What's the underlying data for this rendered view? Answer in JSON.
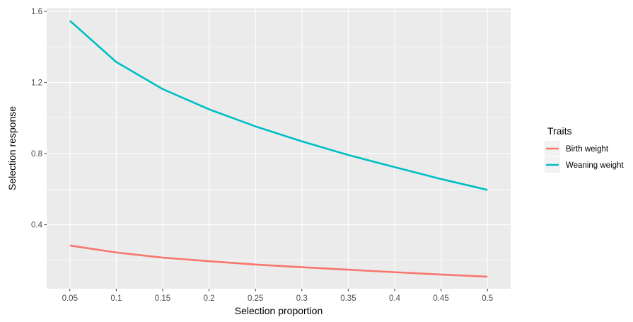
{
  "chart_data": {
    "type": "line",
    "title": "",
    "xlabel": "Selection proportion",
    "ylabel": "Selection response",
    "xlim": [
      0.025,
      0.525
    ],
    "ylim": [
      0.04,
      1.62
    ],
    "x_ticks": [
      0.05,
      0.1,
      0.15,
      0.2,
      0.25,
      0.3,
      0.35,
      0.4,
      0.45,
      0.5
    ],
    "x_tick_labels": [
      "0.05",
      "0.1",
      "0.15",
      "0.2",
      "0.25",
      "0.3",
      "0.35",
      "0.4",
      "0.45",
      "0.5"
    ],
    "y_ticks": [
      0.4,
      0.8,
      1.2,
      1.6
    ],
    "y_tick_labels": [
      "0.4",
      "0.8",
      "1.2",
      "1.6"
    ],
    "grid": true,
    "legend": {
      "title": "Traits",
      "position": "right"
    },
    "x": [
      0.05,
      0.1,
      0.15,
      0.2,
      0.25,
      0.3,
      0.35,
      0.4,
      0.45,
      0.5
    ],
    "series": [
      {
        "name": "Birth weight",
        "color": "#F8766D",
        "values": [
          0.283,
          0.244,
          0.215,
          0.195,
          0.176,
          0.161,
          0.147,
          0.133,
          0.12,
          0.108
        ]
      },
      {
        "name": "Weaning weight",
        "color": "#00BFC4",
        "values": [
          1.547,
          1.315,
          1.163,
          1.049,
          0.953,
          0.869,
          0.792,
          0.724,
          0.657,
          0.596
        ]
      }
    ]
  }
}
